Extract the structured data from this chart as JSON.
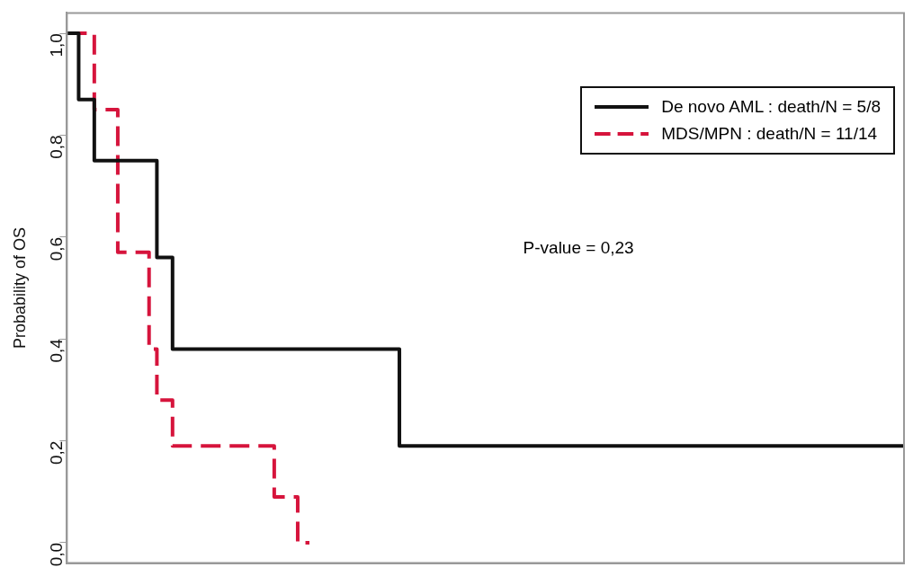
{
  "chart_data": {
    "type": "step",
    "ylabel": "Probability of OS",
    "categories": [
      null,
      null,
      null,
      null,
      null,
      null,
      null,
      null,
      null,
      null,
      null,
      null,
      null,
      null,
      null,
      null,
      null,
      null,
      null,
      null,
      null,
      null,
      null,
      null,
      null,
      null,
      null,
      null,
      null,
      null,
      null,
      null,
      null,
      null,
      null,
      null,
      null,
      null,
      null,
      null,
      null,
      null,
      null,
      null,
      null,
      null,
      null,
      null,
      null,
      null,
      null,
      null,
      null,
      null,
      null,
      null,
      null,
      null,
      null,
      null,
      null,
      null,
      null,
      null,
      null,
      null,
      null,
      null,
      null,
      null,
      null,
      null,
      null,
      null,
      null,
      null,
      null,
      null,
      null,
      null,
      null,
      null,
      null,
      null,
      null,
      null,
      null,
      null,
      null,
      null,
      null,
      null,
      null,
      null,
      null,
      null,
      null,
      null,
      null,
      null,
      null,
      null,
      null,
      null,
      null,
      null,
      null,
      null
    ],
    "ylim": [
      -0.04,
      1.04
    ],
    "yticks": [
      {
        "value": 0,
        "label": "0,0"
      },
      {
        "value": 0.2,
        "label": "0,2"
      },
      {
        "value": 0.4,
        "label": "0,4"
      },
      {
        "value": 0.6,
        "label": "0,6"
      },
      {
        "value": 0.8,
        "label": "0,8"
      },
      {
        "value": 1,
        "label": "1,0"
      }
    ],
    "tick_labels": "y",
    "grid": false,
    "legend": "top right",
    "marker": "none",
    "series": [
      {
        "name": "De novo AML : death/N = 5/8",
        "color": "#111111",
        "line_style": "solid",
        "values": [
          1,
          1,
          0.87,
          0.87,
          0.75,
          0.75,
          0.75,
          0.75,
          0.75,
          0.75,
          0.75,
          0.75,
          0.56,
          0.56,
          0.38,
          0.38,
          0.38,
          0.38,
          0.38,
          0.38,
          0.38,
          0.38,
          0.38,
          0.38,
          0.38,
          0.38,
          0.38,
          0.38,
          0.38,
          0.38,
          0.38,
          0.38,
          0.38,
          0.38,
          0.38,
          0.38,
          0.38,
          0.38,
          0.38,
          0.38,
          0.38,
          0.38,
          0.38,
          0.19,
          0.19,
          0.19,
          0.19,
          0.19,
          0.19,
          0.19,
          0.19,
          0.19,
          0.19,
          0.19,
          0.19,
          0.19,
          0.19,
          0.19,
          0.19,
          0.19,
          0.19,
          0.19,
          0.19,
          0.19,
          0.19,
          0.19,
          0.19,
          0.19,
          0.19,
          0.19,
          0.19,
          0.19,
          0.19,
          0.19,
          0.19,
          0.19,
          0.19,
          0.19,
          0.19,
          0.19,
          0.19,
          0.19,
          0.19,
          0.19,
          0.19,
          0.19,
          0.19,
          0.19,
          0.19,
          0.19,
          0.19,
          0.19,
          0.19,
          0.19,
          0.19,
          0.19,
          0.19,
          0.19,
          0.19,
          0.19,
          0.19,
          0.19,
          0.19,
          0.19,
          0.19,
          0.19,
          0.19,
          0.19
        ]
      },
      {
        "name": "MDS/MPN : death/N = 11/14",
        "color": "#d6143c",
        "line_style": "dashed",
        "values": [
          1,
          1,
          1,
          1,
          0.85,
          0.85,
          0.85,
          0.57,
          0.57,
          0.57,
          0.57,
          0.38,
          0.28,
          0.28,
          0.19,
          0.19,
          0.19,
          0.19,
          0.19,
          0.19,
          0.19,
          0.19,
          0.19,
          0.19,
          0.19,
          0.19,
          0.19,
          0.09,
          0.09,
          0.09,
          0,
          0,
          null,
          null,
          null,
          null,
          null,
          null,
          null,
          null,
          null,
          null,
          null,
          null,
          null,
          null,
          null,
          null,
          null,
          null,
          null,
          null,
          null,
          null,
          null,
          null,
          null,
          null,
          null,
          null,
          null,
          null,
          null,
          null,
          null,
          null,
          null,
          null,
          null,
          null,
          null,
          null,
          null,
          null,
          null,
          null,
          null,
          null,
          null,
          null,
          null,
          null,
          null,
          null,
          null,
          null,
          null,
          null,
          null,
          null,
          null,
          null,
          null,
          null,
          null,
          null,
          null,
          null,
          null,
          null,
          null,
          null,
          null,
          null,
          null,
          null,
          null,
          null
        ]
      }
    ],
    "annotations": [
      "P-value = 0,23"
    ]
  }
}
